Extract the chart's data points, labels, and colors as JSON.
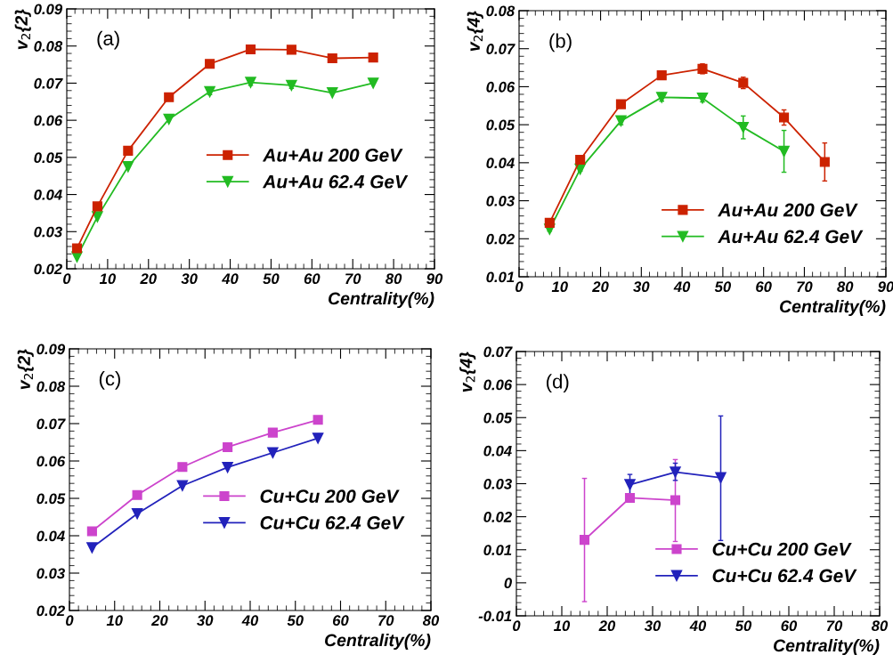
{
  "chart_data": [
    {
      "type": "line",
      "ylabel": "v$_{2}${2}",
      "xlabel": "Centrality(%)",
      "annotations": [
        "(a)"
      ],
      "xlim": [
        0,
        90
      ],
      "xticks": [
        0,
        10,
        20,
        30,
        40,
        50,
        60,
        70,
        80,
        90
      ],
      "ylim": [
        0.02,
        0.09
      ],
      "yticks": [
        0.02,
        0.03,
        0.04,
        0.05,
        0.06,
        0.07,
        0.08,
        0.09
      ],
      "legend": "right",
      "series": [
        {
          "name": "Au+Au 200 GeV",
          "color": "#cc2200",
          "marker": "square",
          "x": [
            2.5,
            7.5,
            15,
            25,
            35,
            45,
            55,
            65,
            75
          ],
          "values": [
            0.0255,
            0.0368,
            0.0518,
            0.0662,
            0.0752,
            0.0791,
            0.079,
            0.0767,
            0.0769
          ],
          "errors": [
            null,
            null,
            null,
            0.0006,
            0.0008,
            0.0009,
            0.0009,
            0.0008,
            null
          ]
        },
        {
          "name": "Au+Au 62.4 GeV",
          "color": "#22bb22",
          "marker": "triangle",
          "x": [
            2.5,
            7.5,
            15,
            25,
            35,
            45,
            55,
            65,
            75
          ],
          "values": [
            0.0232,
            0.034,
            0.0475,
            0.0603,
            0.0677,
            0.0702,
            0.0694,
            0.0674,
            0.07
          ],
          "errors": [
            null,
            null,
            null,
            null,
            0.0008,
            0.0008,
            0.0008,
            null,
            null
          ]
        }
      ]
    },
    {
      "type": "line",
      "ylabel": "v$_{2}${4}",
      "xlabel": "Centrality(%)",
      "annotations": [
        "(b)"
      ],
      "xlim": [
        0,
        90
      ],
      "xticks": [
        0,
        10,
        20,
        30,
        40,
        50,
        60,
        70,
        80,
        90
      ],
      "ylim": [
        0.01,
        0.08
      ],
      "yticks": [
        0.01,
        0.02,
        0.03,
        0.04,
        0.05,
        0.06,
        0.07,
        0.08
      ],
      "legend": "bottom right",
      "series": [
        {
          "name": "Au+Au 200 GeV",
          "color": "#cc2200",
          "marker": "square",
          "x": [
            7.5,
            15,
            25,
            35,
            45,
            55,
            65,
            75
          ],
          "values": [
            0.0242,
            0.0408,
            0.0554,
            0.063,
            0.0647,
            0.061,
            0.0519,
            0.0402
          ],
          "errors": [
            0.0005,
            0.0005,
            0.0007,
            0.001,
            0.0013,
            0.0015,
            0.002,
            0.005
          ]
        },
        {
          "name": "Au+Au 62.4 GeV",
          "color": "#22bb22",
          "marker": "triangle",
          "x": [
            7.5,
            15,
            25,
            35,
            45,
            55,
            65
          ],
          "values": [
            0.0225,
            0.0383,
            0.051,
            0.0572,
            0.057,
            0.0493,
            0.043
          ],
          "errors": [
            0.0005,
            0.0005,
            0.001,
            0.001,
            0.001,
            0.003,
            0.0055
          ]
        }
      ]
    },
    {
      "type": "line",
      "ylabel": "v$_{2}${2}",
      "xlabel": "Centrality(%)",
      "annotations": [
        "(c)"
      ],
      "xlim": [
        0,
        80
      ],
      "xticks": [
        0,
        10,
        20,
        30,
        40,
        50,
        60,
        70,
        80
      ],
      "ylim": [
        0.02,
        0.09
      ],
      "yticks": [
        0.02,
        0.03,
        0.04,
        0.05,
        0.06,
        0.07,
        0.08,
        0.09
      ],
      "legend": "right",
      "series": [
        {
          "name": "Cu+Cu 200 GeV",
          "color": "#cc44cc",
          "marker": "square",
          "x": [
            5,
            15,
            25,
            35,
            45,
            55
          ],
          "values": [
            0.0412,
            0.0509,
            0.0584,
            0.0637,
            0.0676,
            0.071
          ]
        },
        {
          "name": "Cu+Cu 62.4 GeV",
          "color": "#2222bb",
          "marker": "triangle",
          "x": [
            5,
            15,
            25,
            35,
            45,
            55
          ],
          "values": [
            0.0368,
            0.0459,
            0.0534,
            0.0583,
            0.0622,
            0.0661
          ]
        }
      ]
    },
    {
      "type": "line",
      "ylabel": "v$_{2}${4}",
      "xlabel": "Centrality(%)",
      "annotations": [
        "(d)"
      ],
      "xlim": [
        0,
        80
      ],
      "xticks": [
        0,
        10,
        20,
        30,
        40,
        50,
        60,
        70,
        80
      ],
      "ylim": [
        -0.01,
        0.07
      ],
      "yticks": [
        {
          "value": -0.01,
          "label": "-0.01"
        },
        0,
        0.01,
        0.02,
        0.03,
        0.04,
        0.05,
        0.06,
        0.07
      ],
      "legend": "bottom right",
      "series": [
        {
          "name": "Cu+Cu 200 GeV",
          "color": "#cc44cc",
          "marker": "square",
          "x": [
            15,
            25,
            35
          ],
          "values": [
            0.013,
            0.0257,
            0.025
          ],
          "errors": [
            [
              -0.0057,
              0.0316
            ],
            [
              0.0249,
              0.0265
            ],
            [
              0.0125,
              0.0373
            ]
          ]
        },
        {
          "name": "Cu+Cu 62.4 GeV",
          "color": "#2222bb",
          "marker": "triangle",
          "x": [
            25,
            35,
            45
          ],
          "values": [
            0.0297,
            0.0335,
            0.0318
          ],
          "errors": [
            [
              0.0265,
              0.0328
            ],
            [
              0.031,
              0.0362
            ],
            [
              0.0128,
              0.0505
            ]
          ]
        }
      ]
    }
  ]
}
